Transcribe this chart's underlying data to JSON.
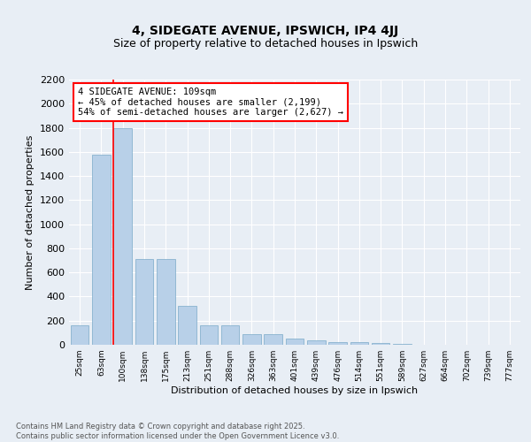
{
  "title": "4, SIDEGATE AVENUE, IPSWICH, IP4 4JJ",
  "subtitle": "Size of property relative to detached houses in Ipswich",
  "xlabel": "Distribution of detached houses by size in Ipswich",
  "ylabel": "Number of detached properties",
  "categories": [
    "25sqm",
    "63sqm",
    "100sqm",
    "138sqm",
    "175sqm",
    "213sqm",
    "251sqm",
    "288sqm",
    "326sqm",
    "363sqm",
    "401sqm",
    "439sqm",
    "476sqm",
    "514sqm",
    "551sqm",
    "589sqm",
    "627sqm",
    "664sqm",
    "702sqm",
    "739sqm",
    "777sqm"
  ],
  "values": [
    160,
    1580,
    1800,
    710,
    710,
    325,
    160,
    160,
    85,
    85,
    50,
    40,
    25,
    20,
    15,
    5,
    0,
    0,
    0,
    0,
    0
  ],
  "bar_color": "#b8d0e8",
  "bar_edge_color": "#7aaac8",
  "vline_x_index": 2,
  "vline_color": "red",
  "annotation_text": "4 SIDEGATE AVENUE: 109sqm\n← 45% of detached houses are smaller (2,199)\n54% of semi-detached houses are larger (2,627) →",
  "annotation_box_color": "red",
  "annotation_fontsize": 7.5,
  "ylim": [
    0,
    2200
  ],
  "yticks": [
    0,
    200,
    400,
    600,
    800,
    1000,
    1200,
    1400,
    1600,
    1800,
    2000,
    2200
  ],
  "background_color": "#e8eef5",
  "plot_background": "#e8eef5",
  "grid_color": "white",
  "title_fontsize": 10,
  "subtitle_fontsize": 9,
  "ylabel_fontsize": 8,
  "xlabel_fontsize": 8,
  "footer_line1": "Contains HM Land Registry data © Crown copyright and database right 2025.",
  "footer_line2": "Contains public sector information licensed under the Open Government Licence v3.0."
}
